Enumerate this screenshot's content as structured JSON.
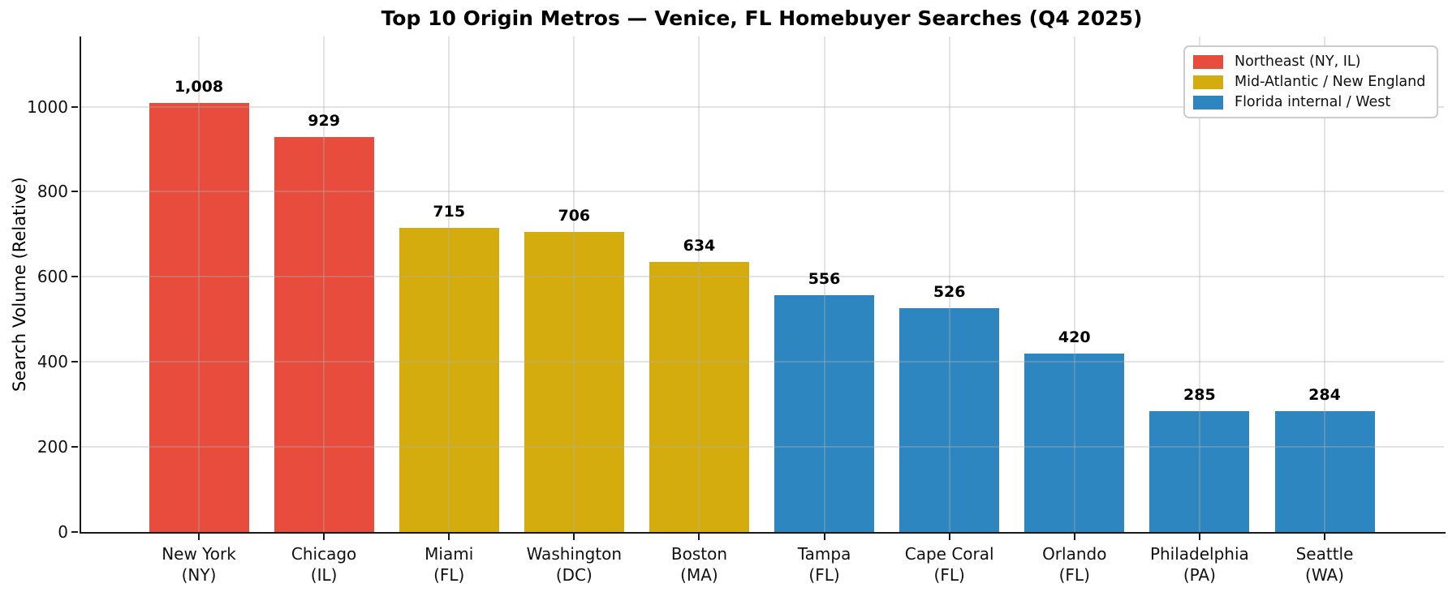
{
  "chart_data": {
    "type": "bar",
    "title": "Top 10 Origin Metros — Venice, FL Homebuyer Searches (Q4 2025)",
    "ylabel": "Search Volume (Relative)",
    "xlabel": "",
    "categories": [
      {
        "city": "New York",
        "state": "(NY)"
      },
      {
        "city": "Chicago",
        "state": "(IL)"
      },
      {
        "city": "Miami",
        "state": "(FL)"
      },
      {
        "city": "Washington",
        "state": "(DC)"
      },
      {
        "city": "Boston",
        "state": "(MA)"
      },
      {
        "city": "Tampa",
        "state": "(FL)"
      },
      {
        "city": "Cape Coral",
        "state": "(FL)"
      },
      {
        "city": "Orlando",
        "state": "(FL)"
      },
      {
        "city": "Philadelphia",
        "state": "(PA)"
      },
      {
        "city": "Seattle",
        "state": "(WA)"
      }
    ],
    "values": [
      1008,
      929,
      715,
      706,
      634,
      556,
      526,
      420,
      285,
      284
    ],
    "value_labels": [
      "1,008",
      "929",
      "715",
      "706",
      "634",
      "556",
      "526",
      "420",
      "285",
      "284"
    ],
    "series_index": [
      0,
      0,
      1,
      1,
      1,
      2,
      2,
      2,
      2,
      2
    ],
    "legend": [
      {
        "label": "Northeast (NY, IL)",
        "color": "#e74c3c"
      },
      {
        "label": "Mid-Atlantic / New England",
        "color": "#d4ac0d"
      },
      {
        "label": "Florida internal / West",
        "color": "#2e86c1"
      }
    ],
    "legend_position": "upper right",
    "yticks": [
      0,
      200,
      400,
      600,
      800,
      1000
    ],
    "ylim": [
      0,
      1165
    ],
    "grid": true
  },
  "colors": {
    "axis": "#1a1a1a",
    "grid_rgba": "rgba(176,176,176,0.35)",
    "background": "#ffffff",
    "legend_border": "#cccccc"
  }
}
